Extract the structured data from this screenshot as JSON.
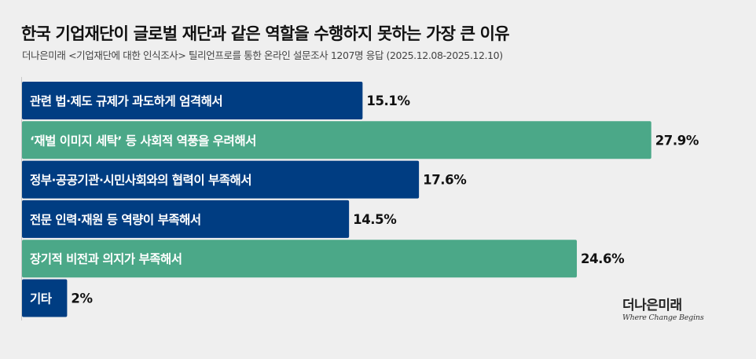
{
  "title": "한국 기업재단이 글로벌 재단과 같은 역할을 수행하지 못하는 가장 큰 이유",
  "subtitle": "더나은미래 <기업재단에 대한 인식조사> 틸리언프로를 통한 온라인 설문조사 1207명 응답 (2025.12.08-2025.12.10)",
  "brand": {
    "name": "더나은미래",
    "tagline": "Where Change Begins"
  },
  "colors": {
    "navy": "#003d82",
    "green": "#4ba888",
    "background": "#efefef"
  },
  "chart_data": {
    "type": "bar",
    "orientation": "horizontal",
    "categories": [
      "관련 법·제도 규제가 과도하게 엄격해서",
      "‘재벌 이미지 세탁’ 등 사회적 역풍을 우려해서",
      "정부·공공기관·시민사회와의 협력이 부족해서",
      "전문 인력·재원 등 역량이 부족해서",
      "장기적 비전과 의지가 부족해서",
      "기타"
    ],
    "values": [
      15.1,
      27.9,
      17.6,
      14.5,
      24.6,
      2
    ],
    "value_labels": [
      "15.1%",
      "27.9%",
      "17.6%",
      "14.5%",
      "24.6%",
      "2%"
    ],
    "bar_colors": [
      "#003d82",
      "#4ba888",
      "#003d82",
      "#003d82",
      "#4ba888",
      "#003d82"
    ],
    "unit": "%",
    "xlim": [
      0,
      32
    ],
    "grid": false,
    "legend": "none"
  }
}
